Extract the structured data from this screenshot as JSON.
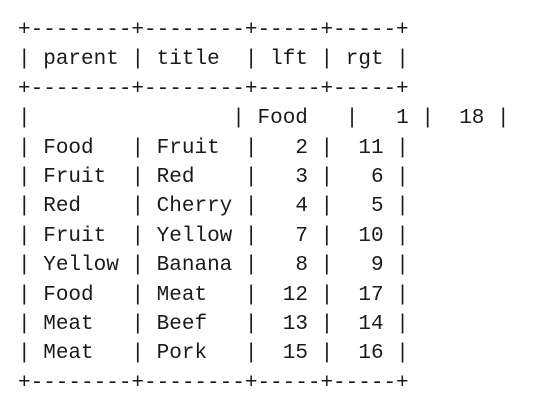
{
  "table": {
    "columns": [
      {
        "key": "parent",
        "header": "parent",
        "width": 8,
        "align": "left"
      },
      {
        "key": "title",
        "header": "title",
        "width": 8,
        "align": "left"
      },
      {
        "key": "lft",
        "header": "lft",
        "width": 5,
        "align": "right"
      },
      {
        "key": "rgt",
        "header": "rgt",
        "width": 5,
        "align": "right"
      }
    ],
    "rows": [
      {
        "parent": "",
        "title": "Food",
        "lft": "1",
        "rgt": "18"
      },
      {
        "parent": "Food",
        "title": "Fruit",
        "lft": "2",
        "rgt": "11"
      },
      {
        "parent": "Fruit",
        "title": "Red",
        "lft": "3",
        "rgt": "6"
      },
      {
        "parent": "Red",
        "title": "Cherry",
        "lft": "4",
        "rgt": "5"
      },
      {
        "parent": "Fruit",
        "title": "Yellow",
        "lft": "7",
        "rgt": "10"
      },
      {
        "parent": "Yellow",
        "title": "Banana",
        "lft": "8",
        "rgt": "9"
      },
      {
        "parent": "Food",
        "title": "Meat",
        "lft": "12",
        "rgt": "17"
      },
      {
        "parent": "Meat",
        "title": "Beef",
        "lft": "13",
        "rgt": "14"
      },
      {
        "parent": "Meat",
        "title": "Pork",
        "lft": "15",
        "rgt": "16"
      }
    ]
  }
}
